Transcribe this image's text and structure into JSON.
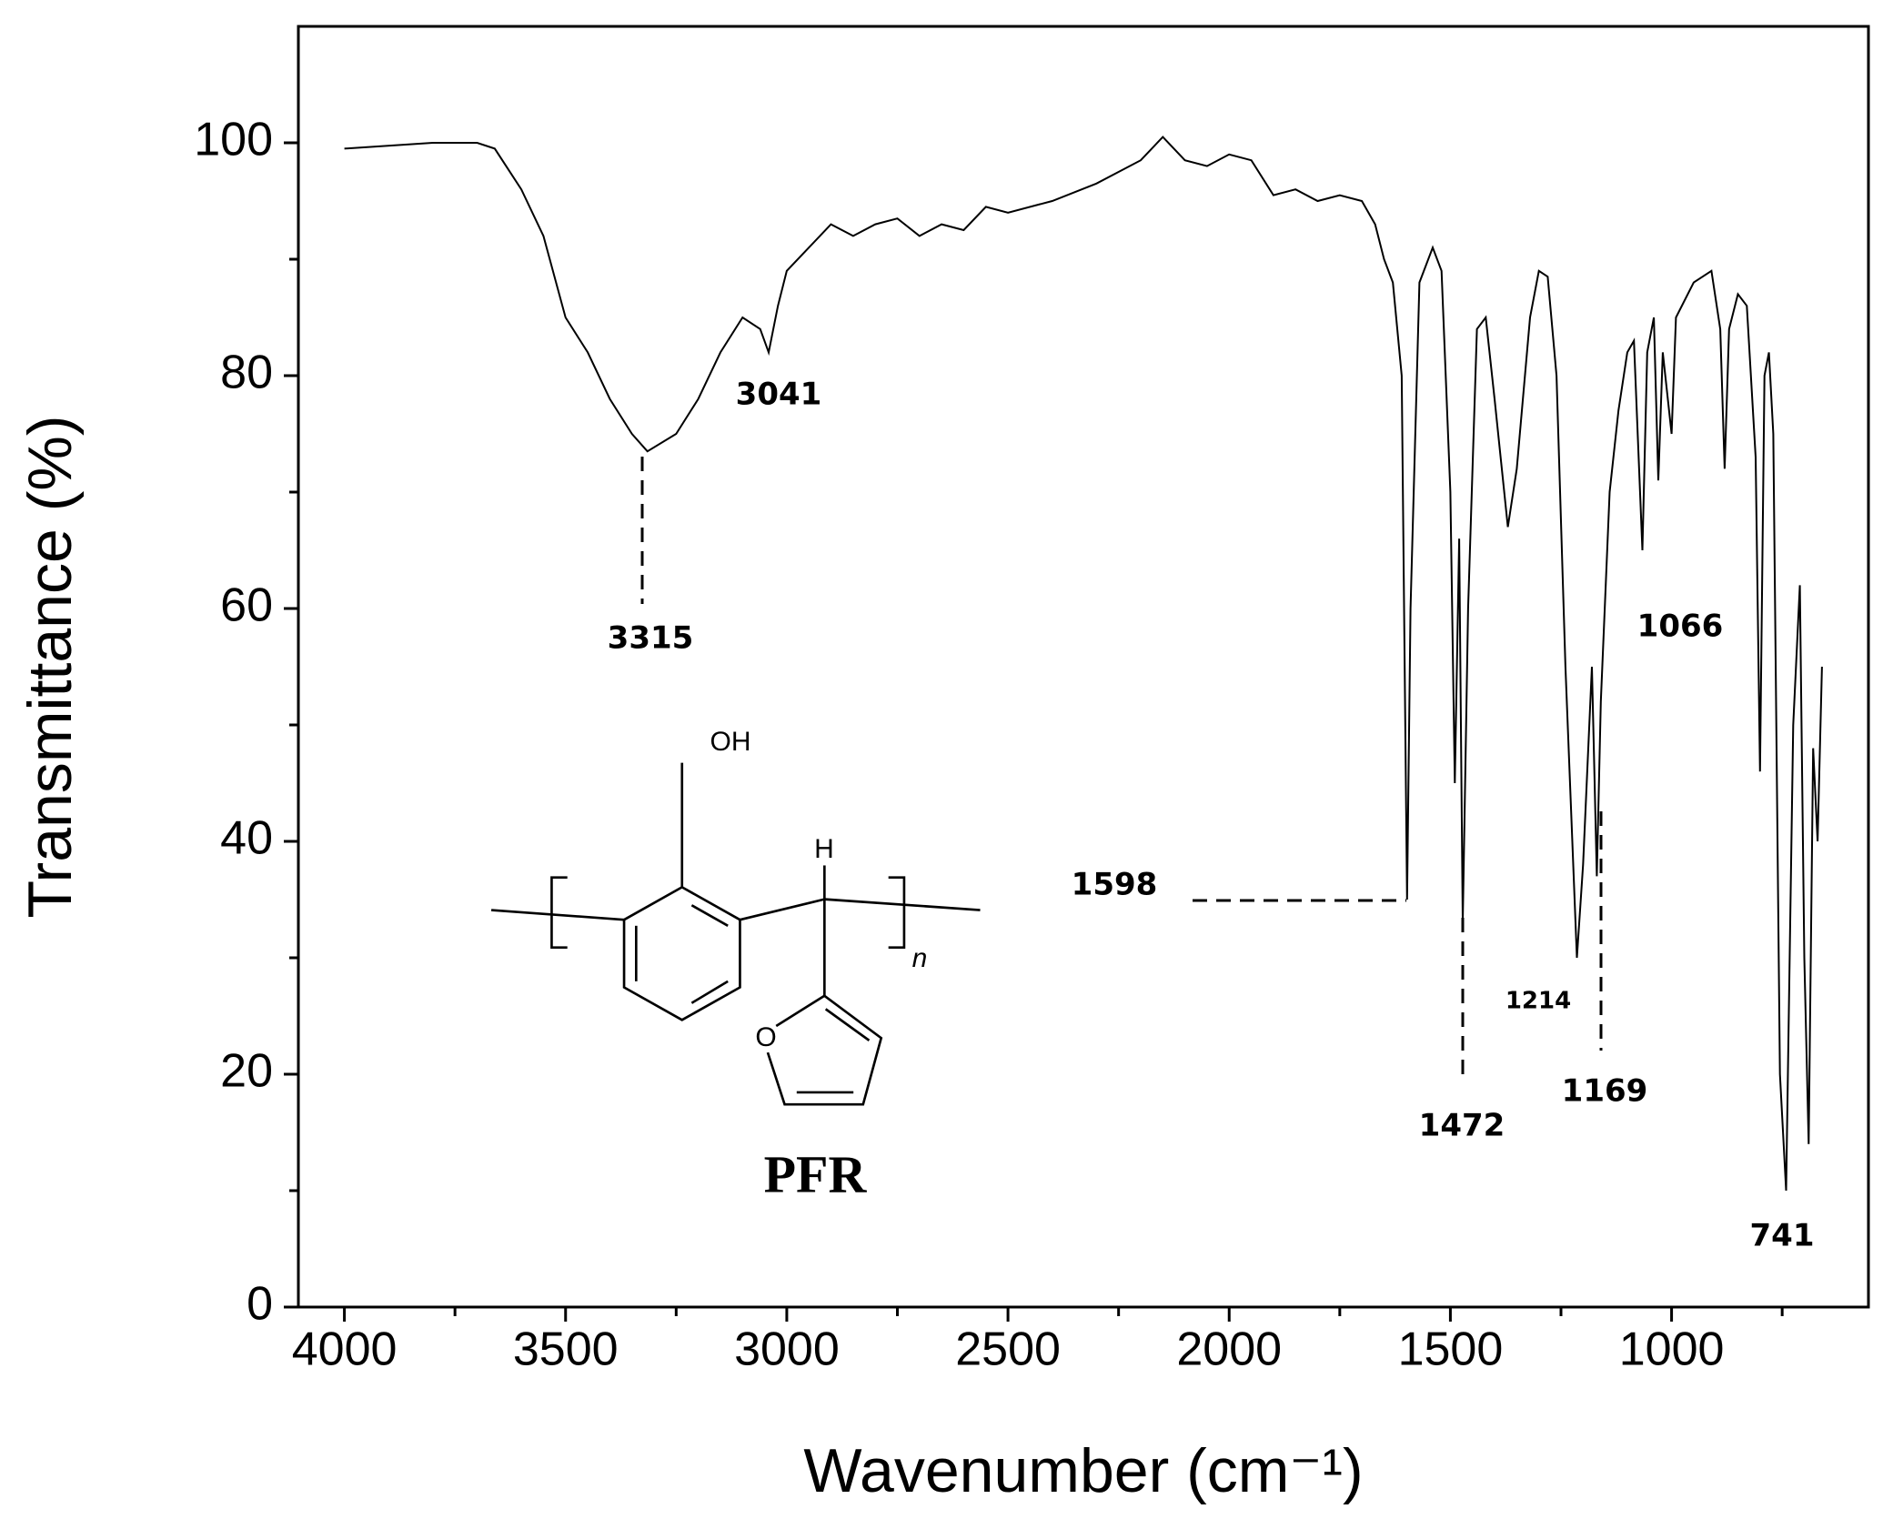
{
  "chart_data": {
    "type": "line",
    "xlabel": "Wavenumber (cm⁻¹)",
    "ylabel": "Transmittance (%)",
    "color": "#000000",
    "xlim": [
      4104,
      555
    ],
    "ylim": [
      0,
      110
    ],
    "xticks": [
      4000,
      3500,
      3000,
      2500,
      2000,
      1500,
      1000
    ],
    "xticks_minor": [
      3750,
      3250,
      2750,
      2250,
      1750,
      1250,
      750
    ],
    "yticks": [
      0,
      20,
      40,
      60,
      80,
      100
    ],
    "yticks_minor": [
      10,
      30,
      50,
      70,
      90
    ],
    "x": [
      4000,
      3800,
      3700,
      3660,
      3600,
      3550,
      3500,
      3450,
      3400,
      3350,
      3315,
      3250,
      3200,
      3150,
      3100,
      3060,
      3041,
      3020,
      3000,
      2950,
      2900,
      2850,
      2800,
      2750,
      2700,
      2650,
      2600,
      2550,
      2500,
      2400,
      2300,
      2200,
      2150,
      2100,
      2050,
      2000,
      1950,
      1900,
      1850,
      1800,
      1750,
      1700,
      1670,
      1650,
      1630,
      1610,
      1598,
      1590,
      1570,
      1540,
      1520,
      1500,
      1490,
      1480,
      1472,
      1460,
      1440,
      1420,
      1400,
      1370,
      1350,
      1320,
      1300,
      1280,
      1260,
      1240,
      1214,
      1200,
      1180,
      1169,
      1160,
      1140,
      1120,
      1100,
      1085,
      1066,
      1055,
      1040,
      1030,
      1020,
      1000,
      990,
      950,
      910,
      890,
      880,
      870,
      850,
      830,
      810,
      800,
      790,
      780,
      770,
      755,
      741,
      725,
      710,
      700,
      690,
      680,
      670,
      660
    ],
    "values": [
      99.5,
      100,
      100,
      99.5,
      96,
      92,
      85,
      82,
      78,
      75,
      73.5,
      75,
      78,
      82,
      85,
      84,
      82,
      86,
      89,
      91,
      93,
      92,
      93,
      93.5,
      92,
      93,
      92.5,
      94.5,
      94,
      95,
      96.5,
      98.5,
      100.5,
      98.5,
      98,
      99,
      98.5,
      95.5,
      96,
      95,
      95.5,
      95,
      93,
      90,
      88,
      80,
      35,
      60,
      88,
      91,
      89,
      70,
      45,
      66,
      33,
      60,
      84,
      85,
      78,
      67,
      72,
      85,
      89,
      88.5,
      80,
      55,
      30,
      38,
      55,
      37,
      52,
      70,
      77,
      82,
      83,
      65,
      82,
      85,
      71,
      82,
      75,
      85,
      88,
      89,
      84,
      72,
      84,
      87,
      86,
      73,
      46,
      80,
      82,
      75,
      20,
      10,
      50,
      62,
      30,
      14,
      48,
      40,
      55
    ],
    "annotations": [
      "3315",
      "3041",
      "1598",
      "1472",
      "1214",
      "1169",
      "1066",
      "741"
    ],
    "structure_labels": [
      "OH",
      "H",
      "O",
      "n",
      "PFR"
    ]
  }
}
